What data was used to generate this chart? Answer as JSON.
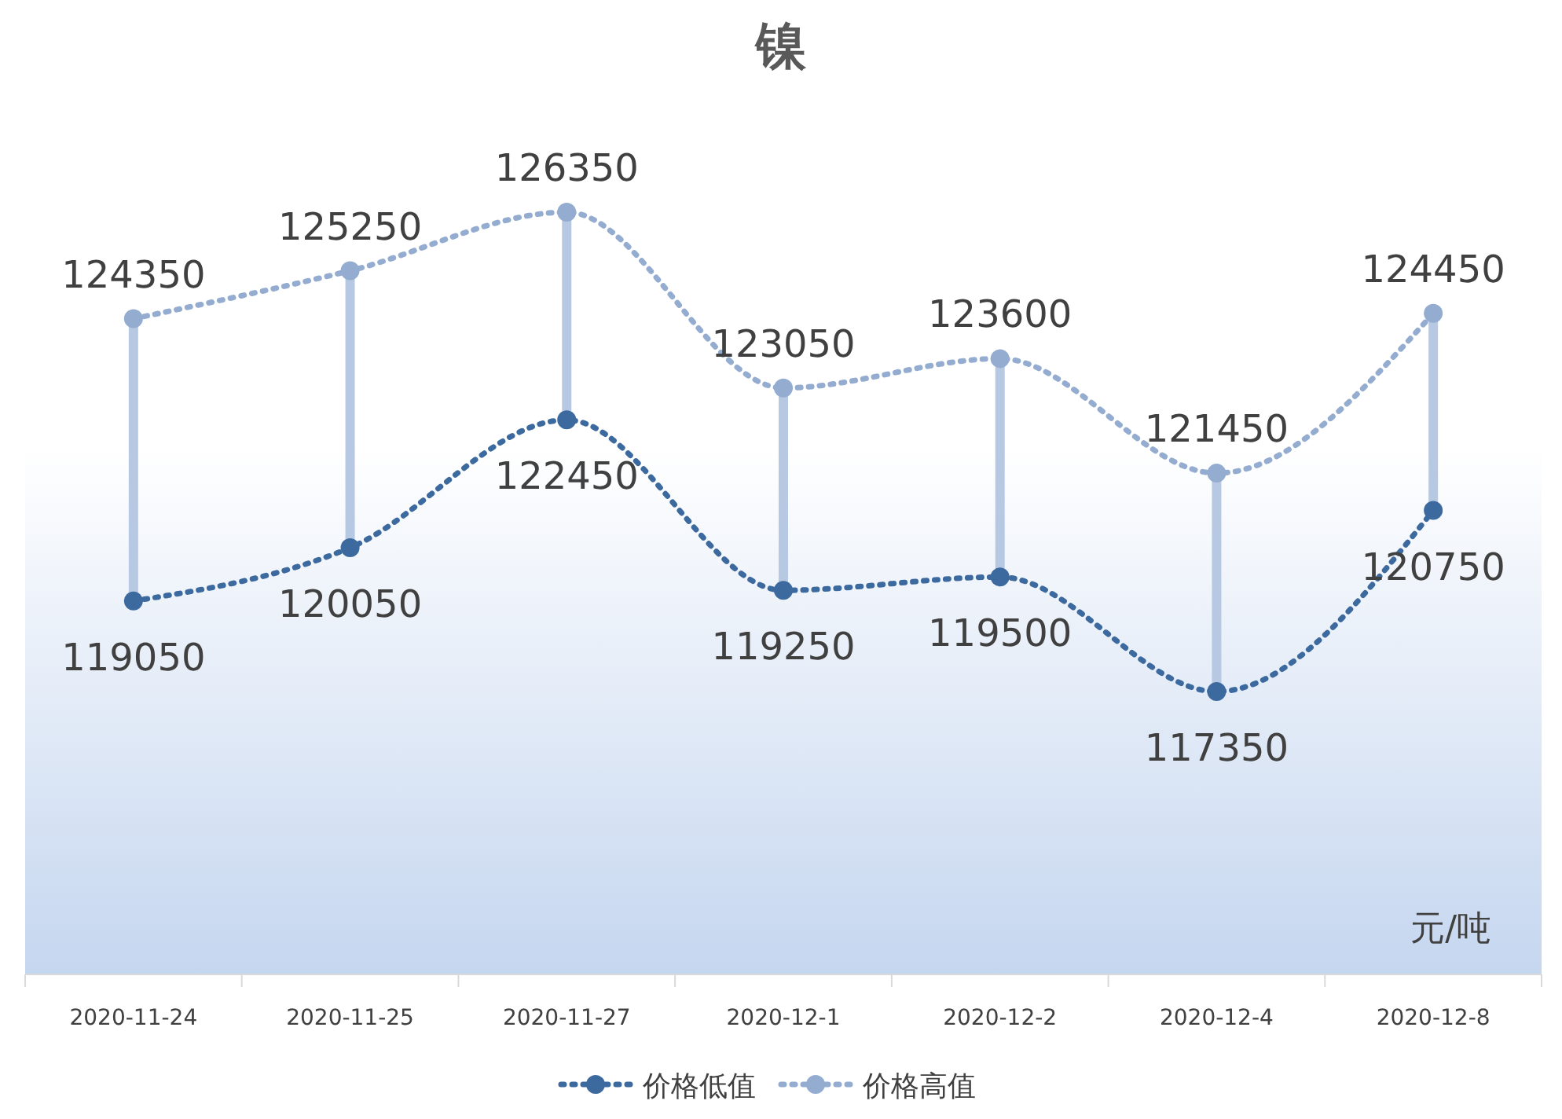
{
  "chart_data": {
    "type": "line",
    "title": "镍",
    "categories": [
      "2020-11-24",
      "2020-11-25",
      "2020-11-27",
      "2020-12-1",
      "2020-12-2",
      "2020-12-4",
      "2020-12-8"
    ],
    "series": [
      {
        "name": "价格低值",
        "color": "#3d6a9e",
        "values": [
          119050,
          120050,
          122450,
          119250,
          119500,
          117350,
          120750
        ]
      },
      {
        "name": "价格高值",
        "color": "#93acd0",
        "values": [
          124350,
          125250,
          126350,
          123050,
          123600,
          121450,
          124450
        ]
      }
    ],
    "data_labels": true,
    "marker": "circle",
    "line_style": "dotted",
    "legend": "bottom",
    "annotations": [
      "元/吨"
    ]
  }
}
